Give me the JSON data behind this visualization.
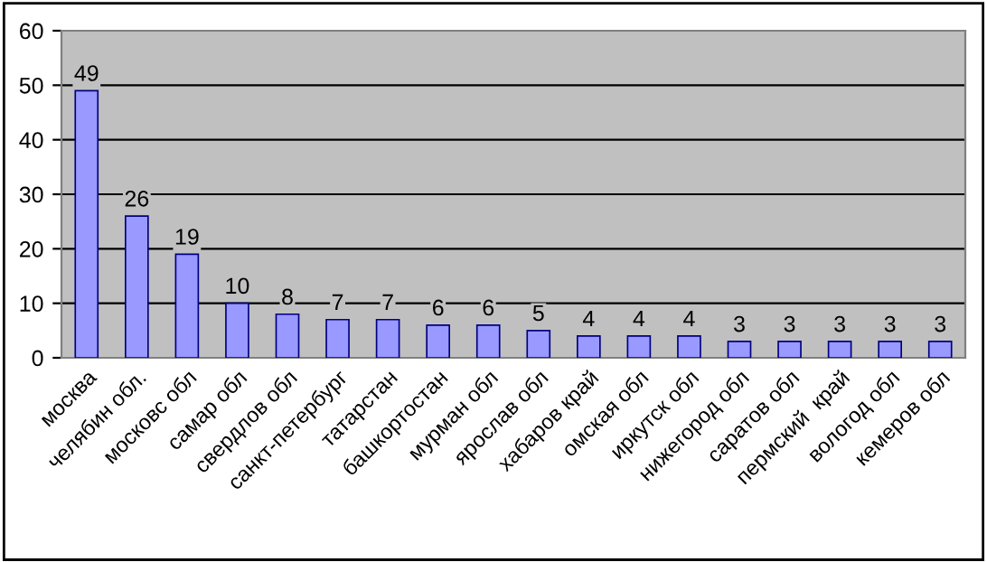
{
  "chart_data": {
    "type": "bar",
    "categories": [
      "москва",
      "челябин обл.",
      "московс обл",
      "самар обл",
      "свердлов обл",
      "санкт-петербург",
      "татарстан",
      "башкортостан",
      "мурман обл",
      "ярослав обл",
      "хабаров край",
      "омская обл",
      "иркутск обл",
      "нижегород обл",
      "саратов обл",
      "пермский  край",
      "вологод обл",
      "кемеров обл"
    ],
    "values": [
      49,
      26,
      19,
      10,
      8,
      7,
      7,
      6,
      6,
      5,
      4,
      4,
      4,
      3,
      3,
      3,
      3,
      3
    ],
    "color": "#9999ff",
    "ylim": [
      0,
      60
    ],
    "yticks": [
      0,
      10,
      20,
      30,
      40,
      50,
      60
    ],
    "grid": "y",
    "data_labels": true,
    "legend": false
  }
}
